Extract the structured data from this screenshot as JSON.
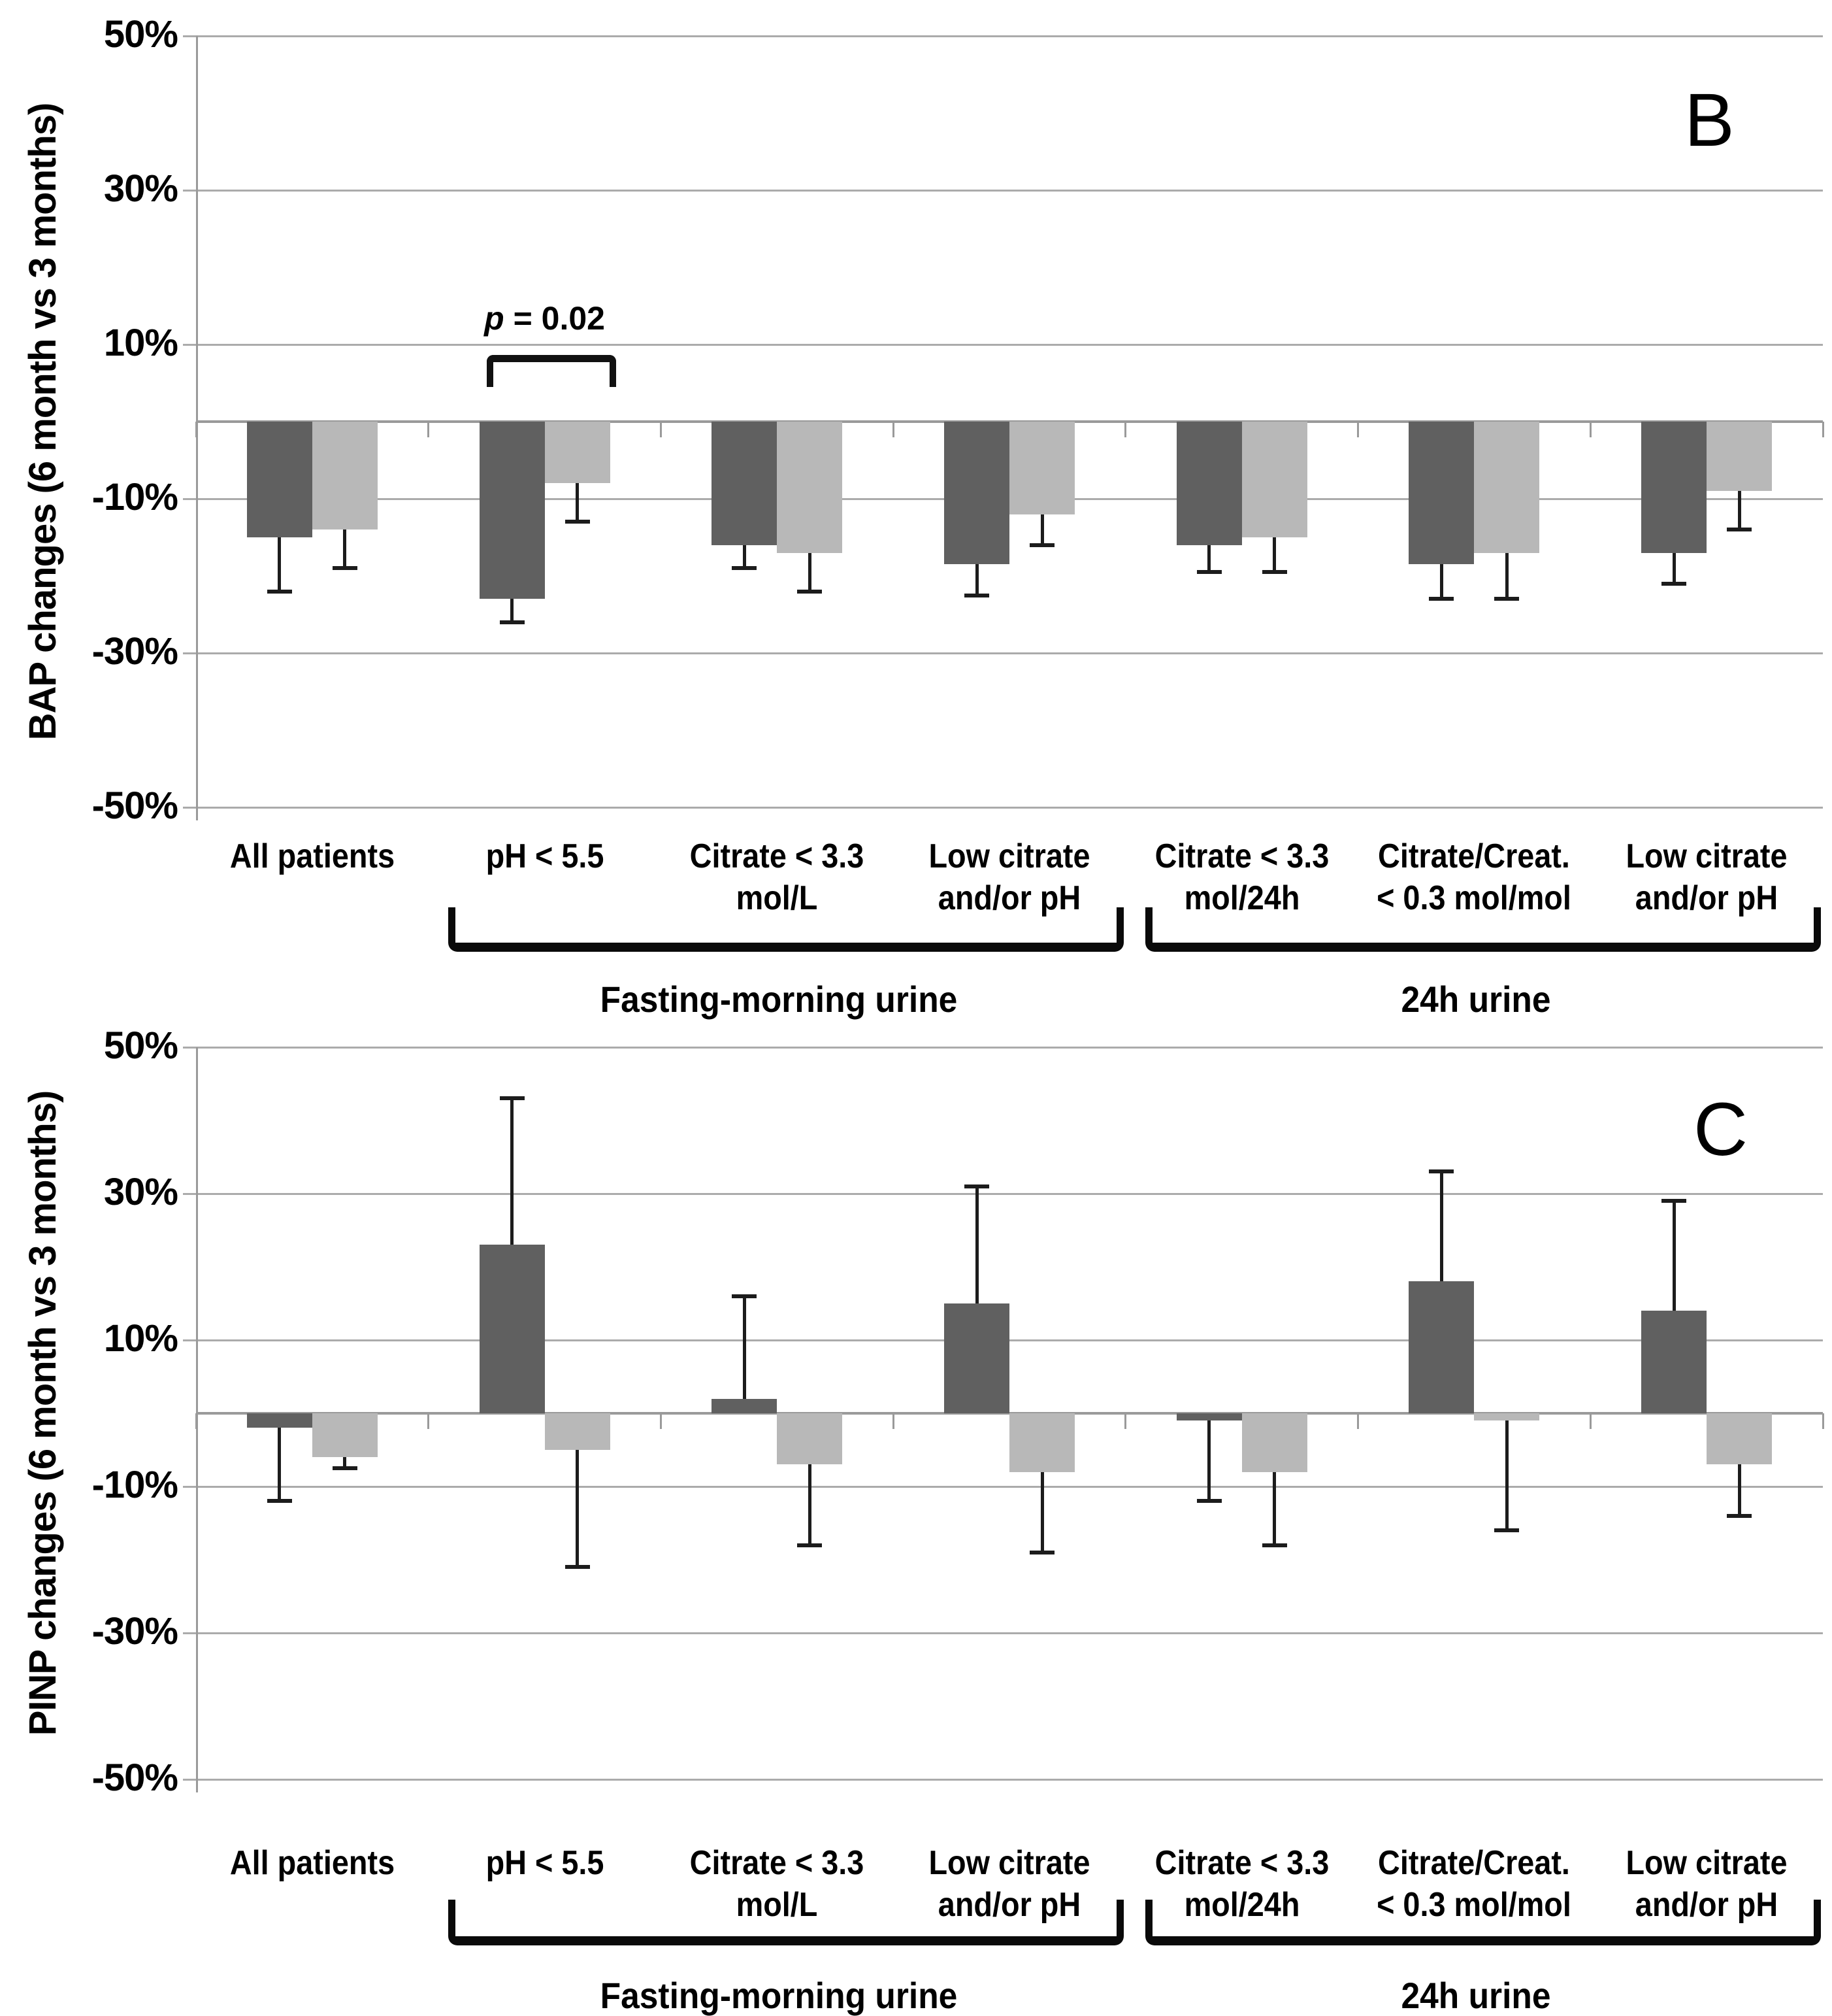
{
  "figure_title": "",
  "palette": {
    "dark_bar": "#606060",
    "light_bar": "#b8b8b8",
    "gridline": "#ababab",
    "axis": "#9a9a9a",
    "error_bar": "#1c1c1c"
  },
  "chart_data": [
    {
      "id": "B",
      "panel_label": "B",
      "type": "bar",
      "ylabel": "BAP changes (6 month vs 3 months)",
      "ylim": [
        -50,
        50
      ],
      "grid": true,
      "legend_position": "none",
      "yticks": [
        {
          "value": 50,
          "label": "50%"
        },
        {
          "value": 30,
          "label": "30%"
        },
        {
          "value": 10,
          "label": "10%"
        },
        {
          "value": -10,
          "label": "-10%"
        },
        {
          "value": -30,
          "label": "-30%"
        },
        {
          "value": -50,
          "label": "-50%"
        }
      ],
      "categories": [
        [
          "All patients"
        ],
        [
          "pH < 5.5"
        ],
        [
          "Citrate < 3.3",
          "mol/L"
        ],
        [
          "Low citrate",
          "and/or pH"
        ],
        [
          "Citrate < 3.3",
          "mol/24h"
        ],
        [
          "Citrate/Creat.",
          "< 0.3 mol/mol"
        ],
        [
          "Low citrate",
          "and/or pH"
        ]
      ],
      "series": [
        {
          "key": "dark",
          "name": "dark-gray-series",
          "color": "#606060",
          "values": [
            -15,
            -23,
            -16,
            -18.5,
            -16,
            -18.5,
            -17
          ],
          "err": [
            7,
            3,
            3,
            4,
            3.5,
            4.5,
            4
          ]
        },
        {
          "key": "light",
          "name": "light-gray-series",
          "color": "#b8b8b8",
          "values": [
            -14,
            -8,
            -17,
            -12,
            -15,
            -17,
            -9
          ],
          "err": [
            5,
            5,
            5,
            4,
            4.5,
            6,
            5
          ]
        }
      ],
      "annotation": {
        "prefix_italic": "p",
        "rest": " = 0.02",
        "target_group": 2
      },
      "axis_groups": [
        {
          "label": "Fasting-morning urine",
          "from": 2,
          "to": 4
        },
        {
          "label": "24h urine",
          "from": 5,
          "to": 7
        }
      ]
    },
    {
      "id": "C",
      "panel_label": "C",
      "type": "bar",
      "ylabel": "PINP changes (6 month vs 3 months)",
      "ylim": [
        -50,
        50
      ],
      "grid": true,
      "legend_position": "none",
      "yticks": [
        {
          "value": 50,
          "label": "50%"
        },
        {
          "value": 30,
          "label": "30%"
        },
        {
          "value": 10,
          "label": "10%"
        },
        {
          "value": -10,
          "label": "-10%"
        },
        {
          "value": -30,
          "label": "-30%"
        },
        {
          "value": -50,
          "label": "-50%"
        }
      ],
      "categories": [
        [
          "All patients"
        ],
        [
          "pH < 5.5"
        ],
        [
          "Citrate < 3.3",
          "mol/L"
        ],
        [
          "Low citrate",
          "and/or pH"
        ],
        [
          "Citrate < 3.3",
          "mol/24h"
        ],
        [
          "Citrate/Creat.",
          "< 0.3 mol/mol"
        ],
        [
          "Low citrate",
          "and/or pH"
        ]
      ],
      "series": [
        {
          "key": "dark",
          "name": "dark-gray-series",
          "color": "#606060",
          "values": [
            -2,
            23,
            2,
            15,
            -1,
            18,
            14
          ],
          "err": [
            10,
            20,
            14,
            16,
            11,
            15,
            15
          ]
        },
        {
          "key": "light",
          "name": "light-gray-series",
          "color": "#b8b8b8",
          "values": [
            -6,
            -5,
            -7,
            -8,
            -8,
            -1,
            -7
          ],
          "err": [
            1.5,
            16,
            11,
            11,
            10,
            15,
            7
          ]
        }
      ],
      "annotation": null,
      "axis_groups": [
        {
          "label": "Fasting-morning urine",
          "from": 2,
          "to": 4
        },
        {
          "label": "24h urine",
          "from": 5,
          "to": 7
        }
      ]
    }
  ]
}
